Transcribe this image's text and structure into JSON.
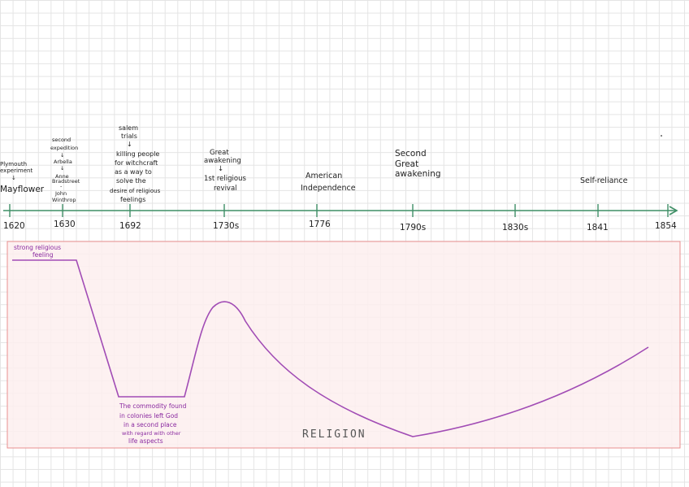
{
  "timeline": {
    "ticks": [
      "1620",
      "1630",
      "1692",
      "1730s",
      "1776",
      "1790s",
      "1830s",
      "1841",
      "1854"
    ],
    "events": {
      "e1620": [
        "Plymouth",
        "experiment",
        "↓",
        "Mayflower"
      ],
      "e1630": [
        "second",
        "expedition",
        "↓",
        "Arbella",
        "↓",
        "Anne",
        "Bradstreet",
        "-",
        "John",
        "Winthrop"
      ],
      "e1692": [
        "salem",
        "trials",
        "↓",
        "killing people",
        "for witchcraft",
        "as a way to",
        "solve the",
        "desire of religious",
        "feelings"
      ],
      "e1730": [
        "Great",
        "awakening",
        "↓",
        "1st religious",
        "revival"
      ],
      "e1776": [
        "American",
        "Independence"
      ],
      "e1790": [
        "Second",
        "Great",
        "awakening"
      ],
      "e1841": [
        "Self-reliance"
      ]
    }
  },
  "graph": {
    "title": "RELIGION",
    "annotations": {
      "start": [
        "strong religious",
        "feeling"
      ],
      "low": [
        "The commodity found",
        "in colonies left God",
        "in a second place",
        "with regard with other",
        "life aspects"
      ]
    },
    "colors": {
      "curve": "#a14cb5",
      "axis": "#3f8f66",
      "panel_fill": "#fdeeee",
      "panel_border": "#e98f8f"
    }
  }
}
